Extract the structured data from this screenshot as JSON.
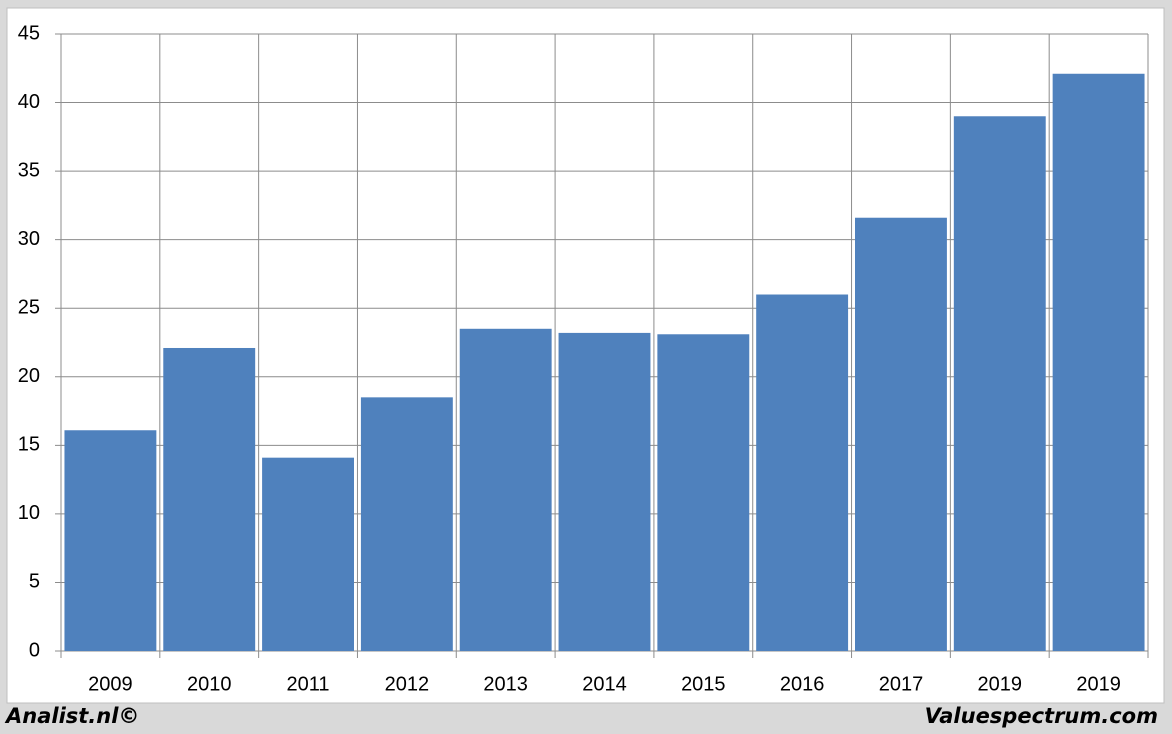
{
  "chart_data": {
    "type": "bar",
    "categories": [
      "2009",
      "2010",
      "2011",
      "2012",
      "2013",
      "2014",
      "2015",
      "2016",
      "2017",
      "2019",
      "2019"
    ],
    "values": [
      16.1,
      22.1,
      14.1,
      18.5,
      23.5,
      23.2,
      23.1,
      26.0,
      31.6,
      39.0,
      42.1
    ],
    "color": "#4f81bd",
    "ylim": [
      0,
      45
    ],
    "yticks": [
      0,
      5,
      10,
      15,
      20,
      25,
      30,
      35,
      40,
      45
    ],
    "grid": true,
    "footer_left": "Analist.nl©",
    "footer_right": "Valuespectrum.com"
  }
}
